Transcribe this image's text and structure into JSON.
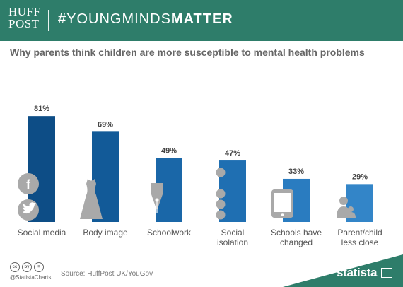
{
  "header": {
    "brand_line1": "HUFF",
    "brand_line2": "POST",
    "hashtag_light": "#YOUNGMINDS",
    "hashtag_bold": "MATTER",
    "bg_color": "#2e7d6a"
  },
  "chart_data": {
    "type": "bar",
    "title": "Why parents think children are more susceptible to mental health problems",
    "categories": [
      "Social media",
      "Body image",
      "Schoolwork",
      "Social isolation",
      "Schools have changed",
      "Parent/child less close"
    ],
    "category_lines": [
      [
        "Social media"
      ],
      [
        "Body image"
      ],
      [
        "Schoolwork"
      ],
      [
        "Social",
        "isolation"
      ],
      [
        "Schools have",
        "changed"
      ],
      [
        "Parent/child",
        "less close"
      ]
    ],
    "values": [
      81,
      69,
      49,
      47,
      33,
      29
    ],
    "data_labels": [
      "81%",
      "69%",
      "49%",
      "47%",
      "33%",
      "29%"
    ],
    "ylim": [
      0,
      100
    ],
    "grid": false,
    "colors": [
      "#0d4d86",
      "#125a98",
      "#1a67a8",
      "#1f6fb2",
      "#2a7cc0",
      "#3385c8"
    ],
    "icons": [
      "facebook-twitter-icon",
      "dress-icon",
      "pen-nib-icon",
      "dots-icon",
      "tablet-icon",
      "parent-child-icon"
    ]
  },
  "footer": {
    "license_icons": [
      "cc",
      "by",
      "="
    ],
    "handle": "@StatistaCharts",
    "source": "Source: HuffPost UK/YouGov",
    "brand": "statista"
  }
}
